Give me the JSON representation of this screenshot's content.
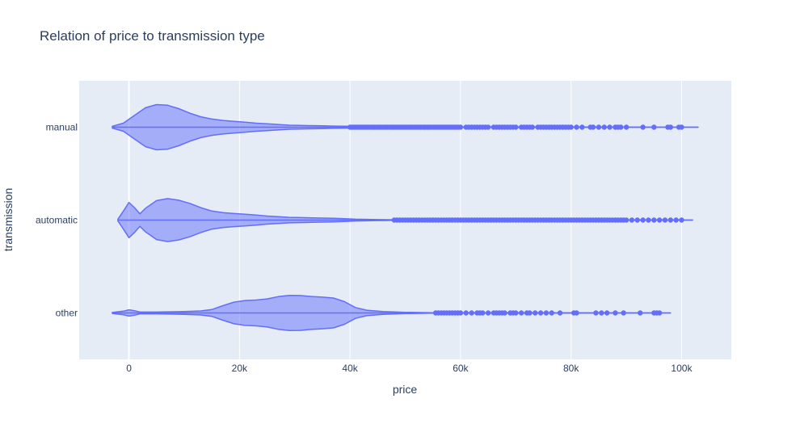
{
  "chart_data": {
    "type": "violin",
    "orientation": "horizontal",
    "title": "Relation of price to transmission type",
    "xlabel": "price",
    "ylabel": "transmission",
    "xlim": [
      -9000,
      109000
    ],
    "x_ticks": [
      0,
      20000,
      40000,
      60000,
      80000,
      100000
    ],
    "x_tick_labels": [
      "0",
      "20k",
      "40k",
      "60k",
      "80k",
      "100k"
    ],
    "categories": [
      "manual",
      "automatic",
      "other"
    ],
    "grid": true,
    "legend": "none",
    "colors": {
      "fill": "#636efa",
      "plot_background": "#e5ecf6",
      "grid": "#ffffff",
      "text": "#2a3f5f"
    },
    "series": [
      {
        "category": "manual",
        "range": [
          -3000,
          103000
        ],
        "density": [
          [
            -3000,
            0.04
          ],
          [
            -1000,
            0.18
          ],
          [
            1000,
            0.52
          ],
          [
            3000,
            0.86
          ],
          [
            5000,
            1.0
          ],
          [
            7000,
            0.97
          ],
          [
            9000,
            0.82
          ],
          [
            11000,
            0.62
          ],
          [
            13000,
            0.46
          ],
          [
            15000,
            0.36
          ],
          [
            17000,
            0.3
          ],
          [
            19000,
            0.26
          ],
          [
            21000,
            0.22
          ],
          [
            23000,
            0.18
          ],
          [
            25000,
            0.15
          ],
          [
            27000,
            0.12
          ],
          [
            29000,
            0.09
          ],
          [
            31000,
            0.08
          ],
          [
            33000,
            0.07
          ],
          [
            35000,
            0.06
          ],
          [
            37000,
            0.05
          ],
          [
            40000,
            0.04
          ],
          [
            45000,
            0.02
          ],
          [
            50000,
            0.01
          ],
          [
            103000,
            0.0
          ]
        ],
        "outliers": [
          40000,
          40400,
          40800,
          41200,
          41600,
          42000,
          42400,
          42800,
          43200,
          43600,
          44000,
          44400,
          44800,
          45200,
          45600,
          46000,
          46400,
          46800,
          47200,
          47600,
          48000,
          48400,
          48800,
          49200,
          49600,
          50000,
          50400,
          50800,
          51200,
          51600,
          52000,
          52400,
          52800,
          53200,
          53600,
          54000,
          54400,
          54800,
          55200,
          55600,
          56000,
          56400,
          56800,
          57200,
          57600,
          58000,
          58400,
          58800,
          59200,
          59600,
          60000,
          61000,
          61500,
          62000,
          62500,
          63000,
          63500,
          64000,
          64500,
          65000,
          66000,
          66500,
          67000,
          67500,
          68000,
          68500,
          69000,
          69500,
          70000,
          71000,
          71500,
          72000,
          72500,
          73000,
          74000,
          74500,
          75000,
          75500,
          76000,
          76500,
          77000,
          77500,
          78000,
          78500,
          79000,
          79500,
          80000,
          81000,
          82000,
          83500,
          84000,
          85000,
          86000,
          87000,
          88000,
          88500,
          89000,
          90000,
          93000,
          95000,
          97500,
          98000,
          99500,
          100000
        ]
      },
      {
        "category": "automatic",
        "range": [
          -2000,
          102000
        ],
        "density": [
          [
            -2000,
            0.04
          ],
          [
            -1000,
            0.4
          ],
          [
            0,
            0.78
          ],
          [
            1000,
            0.55
          ],
          [
            2000,
            0.28
          ],
          [
            3000,
            0.52
          ],
          [
            5000,
            0.86
          ],
          [
            7000,
            0.95
          ],
          [
            9000,
            0.88
          ],
          [
            11000,
            0.74
          ],
          [
            13000,
            0.55
          ],
          [
            15000,
            0.4
          ],
          [
            17000,
            0.33
          ],
          [
            19000,
            0.29
          ],
          [
            21000,
            0.26
          ],
          [
            23000,
            0.22
          ],
          [
            25000,
            0.18
          ],
          [
            27000,
            0.15
          ],
          [
            29000,
            0.12
          ],
          [
            31000,
            0.11
          ],
          [
            33000,
            0.1
          ],
          [
            35000,
            0.09
          ],
          [
            37000,
            0.08
          ],
          [
            39000,
            0.06
          ],
          [
            41000,
            0.04
          ],
          [
            45000,
            0.02
          ],
          [
            50000,
            0.01
          ],
          [
            102000,
            0.0
          ]
        ],
        "outliers": [
          48000,
          48500,
          49000,
          49500,
          50000,
          50500,
          51000,
          51500,
          52000,
          52500,
          53000,
          53500,
          54000,
          54500,
          55000,
          55500,
          56000,
          56500,
          57000,
          57500,
          58000,
          58500,
          59000,
          59500,
          60000,
          60500,
          61000,
          61500,
          62000,
          62500,
          63000,
          63500,
          64000,
          64500,
          65000,
          65500,
          66000,
          66500,
          67000,
          67500,
          68000,
          68500,
          69000,
          69500,
          70000,
          70500,
          71000,
          71500,
          72000,
          72500,
          73000,
          73500,
          74000,
          74500,
          75000,
          75500,
          76000,
          76500,
          77000,
          77500,
          78000,
          78500,
          79000,
          79500,
          80000,
          80500,
          81000,
          81500,
          82000,
          82500,
          83000,
          83500,
          84000,
          84500,
          85000,
          85500,
          86000,
          86500,
          87000,
          87500,
          88000,
          88500,
          89000,
          89500,
          90000,
          91000,
          92000,
          93000,
          94000,
          95000,
          96000,
          97000,
          98000,
          99000,
          100000
        ]
      },
      {
        "category": "other",
        "range": [
          -3000,
          98000
        ],
        "density": [
          [
            -3000,
            0.02
          ],
          [
            -1000,
            0.08
          ],
          [
            0,
            0.14
          ],
          [
            1000,
            0.1
          ],
          [
            2000,
            0.04
          ],
          [
            5000,
            0.04
          ],
          [
            10000,
            0.06
          ],
          [
            13000,
            0.09
          ],
          [
            15000,
            0.15
          ],
          [
            17000,
            0.32
          ],
          [
            19000,
            0.48
          ],
          [
            21000,
            0.55
          ],
          [
            23000,
            0.57
          ],
          [
            25000,
            0.62
          ],
          [
            27000,
            0.72
          ],
          [
            29000,
            0.78
          ],
          [
            31000,
            0.77
          ],
          [
            33000,
            0.73
          ],
          [
            35000,
            0.7
          ],
          [
            37000,
            0.66
          ],
          [
            39000,
            0.5
          ],
          [
            41000,
            0.24
          ],
          [
            43000,
            0.12
          ],
          [
            46000,
            0.06
          ],
          [
            50000,
            0.03
          ],
          [
            55000,
            0.01
          ],
          [
            98000,
            0.0
          ]
        ],
        "outliers": [
          55500,
          56000,
          56500,
          57000,
          57500,
          58000,
          58500,
          59000,
          59500,
          60000,
          61000,
          62000,
          63000,
          63500,
          64000,
          65000,
          66000,
          66500,
          67000,
          67500,
          68000,
          69000,
          69500,
          70000,
          71000,
          72000,
          72500,
          73500,
          74500,
          75500,
          76500,
          78000,
          80500,
          81000,
          84500,
          85500,
          86500,
          88000,
          89500,
          92500,
          95000,
          95500,
          96000
        ]
      }
    ]
  }
}
